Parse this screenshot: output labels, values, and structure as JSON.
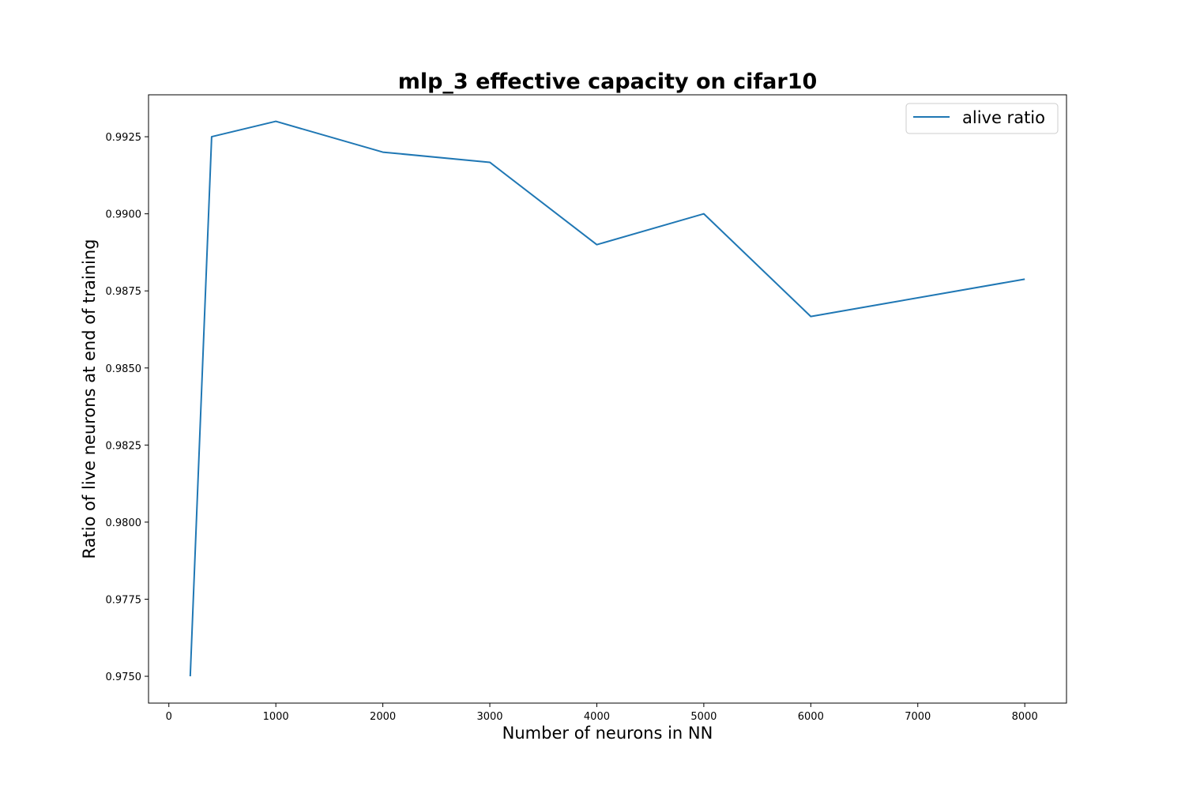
{
  "chart_data": {
    "type": "line",
    "title": "mlp_3 effective capacity on cifar10",
    "xlabel": "Number of neurons in NN",
    "ylabel": "Ratio of live neurons at end of training",
    "xlim": [
      -190,
      8390
    ],
    "ylim": [
      0.97413,
      0.99386
    ],
    "xticks": [
      0,
      1000,
      2000,
      3000,
      4000,
      5000,
      6000,
      7000,
      8000
    ],
    "xtick_labels": [
      "0",
      "1000",
      "2000",
      "3000",
      "4000",
      "5000",
      "6000",
      "7000",
      "8000"
    ],
    "yticks": [
      0.975,
      0.9775,
      0.98,
      0.9825,
      0.985,
      0.9875,
      0.99,
      0.9925
    ],
    "ytick_labels": [
      "0.9750",
      "0.9775",
      "0.9800",
      "0.9825",
      "0.9850",
      "0.9875",
      "0.9900",
      "0.9925"
    ],
    "grid": false,
    "legend_position": "top-right",
    "series": [
      {
        "name": "alive ratio",
        "color": "#1f77b4",
        "x": [
          200,
          400,
          1000,
          2000,
          3000,
          4000,
          5000,
          6000,
          8000
        ],
        "y": [
          0.975,
          0.9925,
          0.993,
          0.992,
          0.99167,
          0.989,
          0.99,
          0.98667,
          0.98788
        ]
      }
    ]
  }
}
